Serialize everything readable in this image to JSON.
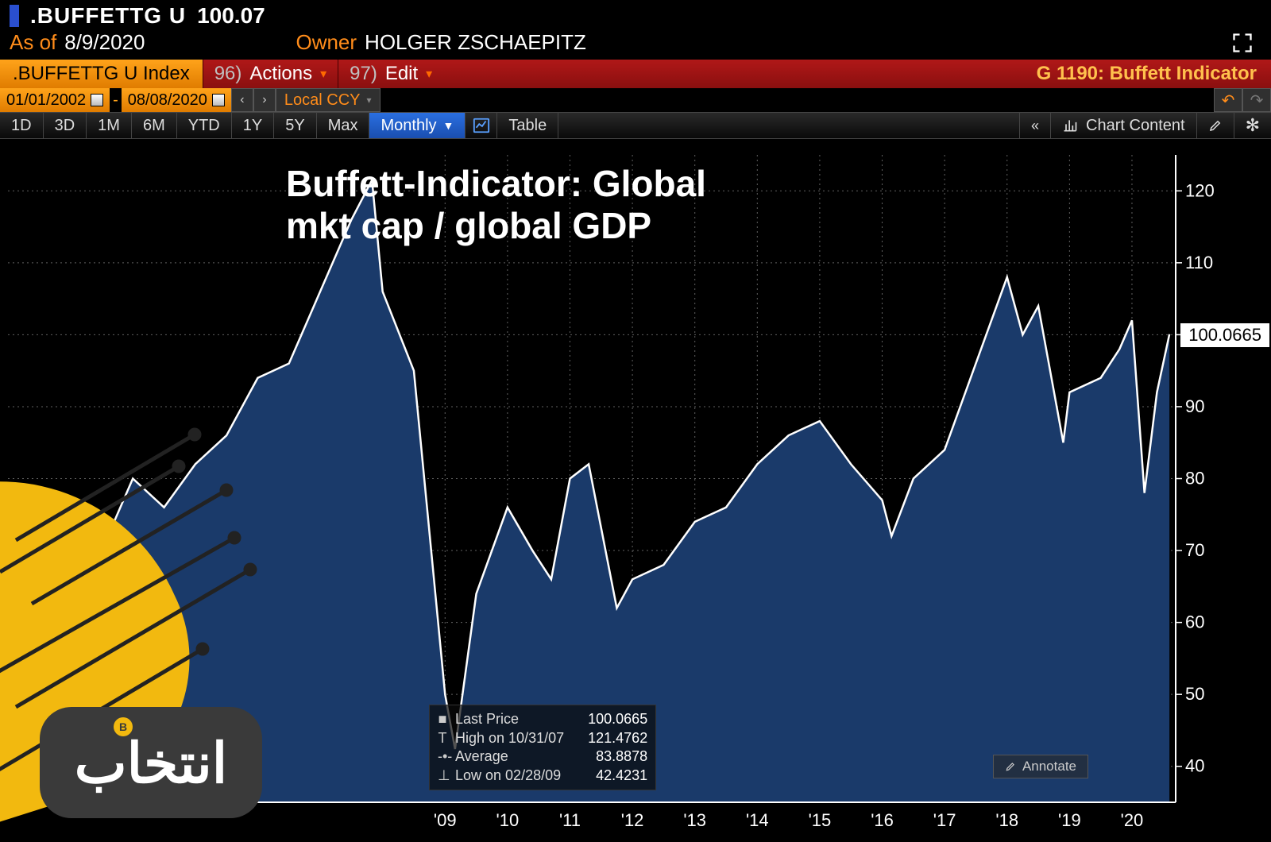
{
  "header": {
    "symbol": ".BUFFETTG U",
    "value": "100.07",
    "asof_label": "As of",
    "asof_value": "8/9/2020",
    "owner_label": "Owner",
    "owner_value": "HOLGER ZSCHAEPITZ"
  },
  "strip": {
    "index_label": ".BUFFETTG U Index",
    "actions_key": "96)",
    "actions_label": "Actions",
    "edit_key": "97)",
    "edit_label": "Edit",
    "right_label": "G 1190: Buffett Indicator"
  },
  "dates": {
    "from": "01/01/2002",
    "to": "08/08/2020",
    "local_ccy": "Local CCY"
  },
  "tabs": {
    "items": [
      "1D",
      "3D",
      "1M",
      "6M",
      "YTD",
      "1Y",
      "5Y",
      "Max"
    ],
    "selected": "Monthly",
    "table_label": "Table",
    "chart_content_label": "Chart Content"
  },
  "chart": {
    "type": "area",
    "title_line1": "Buffett-Indicator: Global",
    "title_line2": "mkt cap / global GDP",
    "title_fontsize": 46,
    "background_color": "#000000",
    "grid_color": "#606060",
    "grid_dash": "2,4",
    "line_color": "#ffffff",
    "line_width": 2.5,
    "fill_color": "#1a3a6a",
    "axis_color": "#ffffff",
    "axis_fontsize": 22,
    "xlim": [
      2002,
      2020.7
    ],
    "ylim": [
      35,
      125
    ],
    "ytick_step": 10,
    "yticks": [
      40,
      50,
      60,
      70,
      80,
      90,
      100,
      110,
      120
    ],
    "xticks": [
      2009,
      2010,
      2011,
      2012,
      2013,
      2014,
      2015,
      2016,
      2017,
      2018,
      2019,
      2020
    ],
    "xtick_labels": [
      "'09",
      "'10",
      "'11",
      "'12",
      "'13",
      "'14",
      "'15",
      "'16",
      "'17",
      "'18",
      "'19",
      "'20"
    ],
    "current_value": "100.0665",
    "series": {
      "x": [
        2002.0,
        2002.5,
        2003.0,
        2003.5,
        2004.0,
        2004.5,
        2005.0,
        2005.5,
        2006.0,
        2006.5,
        2007.0,
        2007.5,
        2007.83,
        2008.0,
        2008.5,
        2009.0,
        2009.16,
        2009.5,
        2010.0,
        2010.4,
        2010.7,
        2011.0,
        2011.3,
        2011.75,
        2012.0,
        2012.5,
        2013.0,
        2013.5,
        2014.0,
        2014.5,
        2015.0,
        2015.5,
        2016.0,
        2016.15,
        2016.5,
        2017.0,
        2017.5,
        2018.0,
        2018.25,
        2018.5,
        2018.9,
        2019.0,
        2019.5,
        2019.8,
        2020.0,
        2020.2,
        2020.4,
        2020.6
      ],
      "y": [
        74,
        68,
        58,
        70,
        80,
        76,
        82,
        86,
        94,
        96,
        106,
        116,
        121.5,
        106,
        95,
        50,
        42.4,
        64,
        76,
        70,
        66,
        80,
        82,
        62,
        66,
        68,
        74,
        76,
        82,
        86,
        88,
        82,
        77,
        72,
        80,
        84,
        96,
        108,
        100,
        104,
        85,
        92,
        94,
        98,
        102,
        78,
        92,
        100.07
      ]
    },
    "annotate_label": "Annotate",
    "legend": {
      "last_label": "Last Price",
      "last_value": "100.0665",
      "high_label": "High on 10/31/07",
      "high_value": "121.4762",
      "avg_label": "Average",
      "avg_value": "83.8878",
      "low_label": "Low on 02/28/09",
      "low_value": "42.4231"
    }
  },
  "colors": {
    "orange": "#ff8c1a",
    "red_bar": "#a01414",
    "blue_sel": "#2a6fe0",
    "accent_yellow": "#f2b90f"
  }
}
